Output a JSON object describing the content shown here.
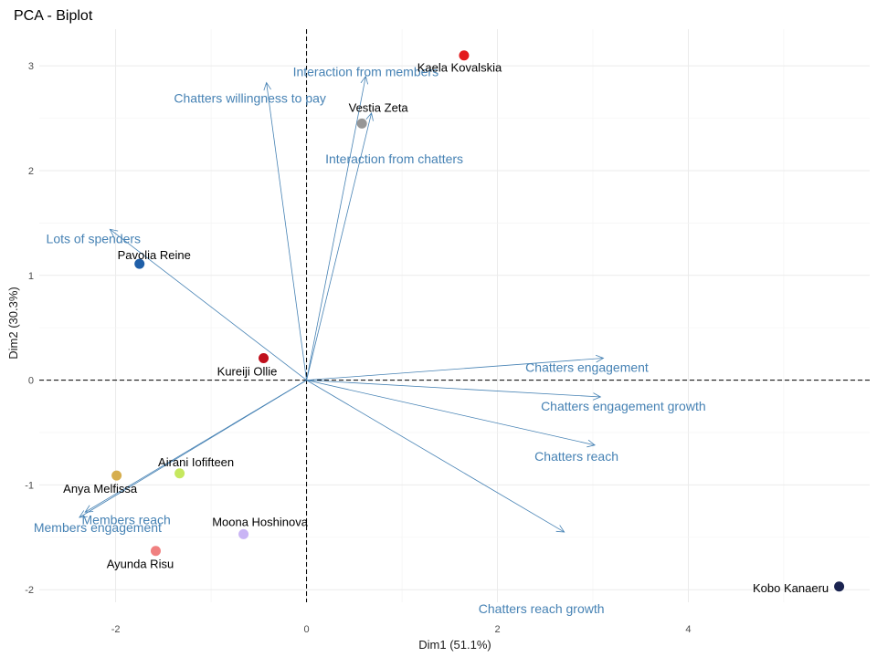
{
  "chart_data": {
    "type": "scatter",
    "title": "PCA - Biplot",
    "xlabel": "Dim1 (51.1%)",
    "ylabel": "Dim2 (30.3%)",
    "xlim": [
      -2.8,
      5.9
    ],
    "ylim": [
      -2.12,
      3.35
    ],
    "x_ticks": [
      -2,
      0,
      2,
      4
    ],
    "y_ticks": [
      -2,
      -1,
      0,
      1,
      2,
      3
    ],
    "grid": true,
    "arrow_color": "#4682B4",
    "reference_lines": [
      {
        "axis": "x",
        "value": 0
      },
      {
        "axis": "y",
        "value": 0
      }
    ],
    "points": [
      {
        "label": "Kaela Kovalskia",
        "x": 1.65,
        "y": 3.1,
        "color": "#E31A1C"
      },
      {
        "label": "Vestia Zeta",
        "x": 0.58,
        "y": 2.45,
        "color": "#969696"
      },
      {
        "label": "Pavolia Reine",
        "x": -1.75,
        "y": 1.11,
        "color": "#1F5FA8"
      },
      {
        "label": "Kureiji Ollie",
        "x": -0.45,
        "y": 0.21,
        "color": "#C0101C"
      },
      {
        "label": "Airani Iofifteen",
        "x": -1.33,
        "y": -0.89,
        "color": "#C6E85F"
      },
      {
        "label": "Anya Melfissa",
        "x": -1.99,
        "y": -0.91,
        "color": "#D6AE4E"
      },
      {
        "label": "Moona Hoshinova",
        "x": -0.66,
        "y": -1.47,
        "color": "#C9B4F5"
      },
      {
        "label": "Ayunda Risu",
        "x": -1.58,
        "y": -1.63,
        "color": "#F08080"
      },
      {
        "label": "Kobo Kanaeru",
        "x": 5.58,
        "y": -1.97,
        "color": "#1A2350"
      }
    ],
    "variables": [
      {
        "label": "Chatters willingness to pay",
        "x": -0.42,
        "y": 2.84
      },
      {
        "label": "Interaction from members",
        "x": 0.62,
        "y": 2.9
      },
      {
        "label": "Interaction from chatters",
        "x": 0.68,
        "y": 2.55
      },
      {
        "label": "Lots of spenders",
        "x": -2.06,
        "y": 1.44
      },
      {
        "label": "Chatters engagement",
        "x": 3.11,
        "y": 0.21
      },
      {
        "label": "Chatters engagement growth",
        "x": 3.08,
        "y": -0.16
      },
      {
        "label": "Chatters reach",
        "x": 3.02,
        "y": -0.62
      },
      {
        "label": "Chatters reach growth",
        "x": 2.7,
        "y": -1.45
      },
      {
        "label": "Members reach",
        "x": -2.32,
        "y": -1.26
      },
      {
        "label": "Members engagement",
        "x": -2.38,
        "y": -1.31
      }
    ]
  }
}
